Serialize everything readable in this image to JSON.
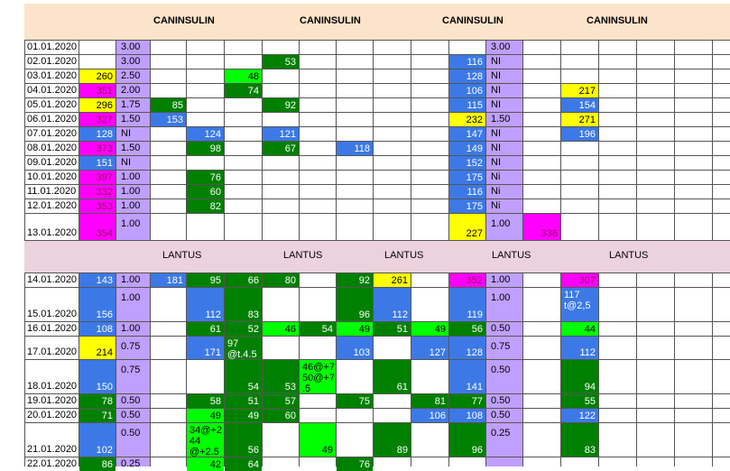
{
  "colors": {
    "header_band": "#fbe4c9",
    "lantus_band": "#ecd2dd",
    "yellow": "#ffff00",
    "magenta": "#ff00ff",
    "blue": "#3c79e6",
    "green": "#008000",
    "lime": "#00ff00",
    "lavender": "#bf9fff",
    "text": "#000000"
  },
  "header": {
    "caninsulin_labels": [
      "CANINSULIN",
      "CANINSULIN",
      "CANINSULIN",
      "CANINSULIN"
    ],
    "lantus_labels": [
      "LANTUS",
      "LANTUS",
      "LANTUS",
      "LANTUS",
      "LANTUS"
    ]
  },
  "rows": [
    {
      "date": "01.01.2020",
      "dose1": "3.00",
      "dose2": "3.00"
    },
    {
      "date": "02.01.2020",
      "dose1": "3.00",
      "dose2": "NI"
    },
    {
      "date": "03.01.2020",
      "dose1": "2.50",
      "dose2": "NI"
    },
    {
      "date": "04.01.2020",
      "dose1": "2.00",
      "dose2": "NI"
    },
    {
      "date": "05.01.2020",
      "dose1": "1.75",
      "dose2": "NI"
    },
    {
      "date": "06.01.2020",
      "dose1": "1.50",
      "dose2": "1.50"
    },
    {
      "date": "07.01.2020",
      "dose1": "NI",
      "dose2": "NI"
    },
    {
      "date": "08.01.2020",
      "dose1": "1.50",
      "dose2": "NI"
    },
    {
      "date": "09.01.2020",
      "dose1": "NI",
      "dose2": "NI"
    },
    {
      "date": "10.01.2020",
      "dose1": "1.00",
      "dose2": "Ni"
    },
    {
      "date": "11.01.2020",
      "dose1": "1.00",
      "dose2": "Ni"
    },
    {
      "date": "12.01.2020",
      "dose1": "1.00",
      "dose2": "Ni"
    },
    {
      "date": "13.01.2020",
      "dose1": "1.00",
      "dose2": "1.00"
    },
    {
      "date": "14.01.2020",
      "dose1": "1.00",
      "dose2": "1.00"
    },
    {
      "date": "15.01.2020",
      "dose1": "1.00",
      "dose2": "1.00"
    },
    {
      "date": "16.01.2020",
      "dose1": "1.00",
      "dose2": "0.50"
    },
    {
      "date": "17.01.2020",
      "dose1": "0.75",
      "dose2": "0.75"
    },
    {
      "date": "18.01.2020",
      "dose1": "0.75",
      "dose2": "0.50"
    },
    {
      "date": "19.01.2020",
      "dose1": "0.50",
      "dose2": "0.50"
    },
    {
      "date": "20.01.2020",
      "dose1": "0.50",
      "dose2": "0.50"
    },
    {
      "date": "21.01.2020",
      "dose1": "0.50",
      "dose2": "0.25"
    },
    {
      "date": "22.01.2020",
      "dose1": "0.25",
      "dose2": ""
    }
  ],
  "cells": [
    {
      "r": 2,
      "c": 1,
      "v": "260",
      "k": "yellow"
    },
    {
      "r": 3,
      "c": 1,
      "v": "351",
      "k": "magenta"
    },
    {
      "r": 4,
      "c": 1,
      "v": "296",
      "k": "yellow"
    },
    {
      "r": 5,
      "c": 1,
      "v": "327",
      "k": "magenta"
    },
    {
      "r": 6,
      "c": 1,
      "v": "128",
      "k": "blue"
    },
    {
      "r": 7,
      "c": 1,
      "v": "373",
      "k": "magenta"
    },
    {
      "r": 8,
      "c": 1,
      "v": "151",
      "k": "blue"
    },
    {
      "r": 9,
      "c": 1,
      "v": "397",
      "k": "magenta"
    },
    {
      "r": 10,
      "c": 1,
      "v": "332",
      "k": "magenta"
    },
    {
      "r": 11,
      "c": 1,
      "v": "353",
      "k": "magenta"
    },
    {
      "r": 12,
      "c": 1,
      "v": "354",
      "k": "magenta"
    },
    {
      "r": 2,
      "c": 5,
      "v": "48",
      "k": "lime"
    },
    {
      "r": 3,
      "c": 5,
      "v": "74",
      "k": "green"
    },
    {
      "r": 1,
      "c": 6,
      "v": "53",
      "k": "green"
    },
    {
      "r": 4,
      "c": 6,
      "v": "92",
      "k": "green"
    },
    {
      "r": 6,
      "c": 6,
      "v": "121",
      "k": "blue"
    },
    {
      "r": 7,
      "c": 6,
      "v": "67",
      "k": "green"
    },
    {
      "r": 4,
      "c": 3,
      "v": "85",
      "k": "green"
    },
    {
      "r": 5,
      "c": 3,
      "v": "153",
      "k": "blue"
    },
    {
      "r": 6,
      "c": 4,
      "v": "124",
      "k": "blue"
    },
    {
      "r": 7,
      "c": 4,
      "v": "98",
      "k": "green"
    },
    {
      "r": 9,
      "c": 4,
      "v": "76",
      "k": "green"
    },
    {
      "r": 10,
      "c": 4,
      "v": "60",
      "k": "green"
    },
    {
      "r": 11,
      "c": 4,
      "v": "82",
      "k": "green"
    },
    {
      "r": 7,
      "c": 8,
      "v": "118",
      "k": "blue"
    },
    {
      "r": 1,
      "c": 11,
      "v": "116",
      "k": "blue"
    },
    {
      "r": 2,
      "c": 11,
      "v": "128",
      "k": "blue"
    },
    {
      "r": 3,
      "c": 11,
      "v": "106",
      "k": "blue"
    },
    {
      "r": 4,
      "c": 11,
      "v": "115",
      "k": "blue"
    },
    {
      "r": 5,
      "c": 11,
      "v": "232",
      "k": "yellow"
    },
    {
      "r": 6,
      "c": 11,
      "v": "147",
      "k": "blue"
    },
    {
      "r": 7,
      "c": 11,
      "v": "149",
      "k": "blue"
    },
    {
      "r": 8,
      "c": 11,
      "v": "152",
      "k": "blue"
    },
    {
      "r": 9,
      "c": 11,
      "v": "175",
      "k": "blue"
    },
    {
      "r": 10,
      "c": 11,
      "v": "116",
      "k": "blue"
    },
    {
      "r": 11,
      "c": 11,
      "v": "175",
      "k": "blue"
    },
    {
      "r": 12,
      "c": 11,
      "v": "227",
      "k": "yellow"
    },
    {
      "r": 12,
      "c": 13,
      "v": "336",
      "k": "magenta"
    },
    {
      "r": 3,
      "c": 14,
      "v": "217",
      "k": "yellow"
    },
    {
      "r": 4,
      "c": 14,
      "v": "154",
      "k": "blue"
    },
    {
      "r": 5,
      "c": 14,
      "v": "271",
      "k": "yellow"
    },
    {
      "r": 6,
      "c": 14,
      "v": "196",
      "k": "blue"
    },
    {
      "r": 13,
      "c": 1,
      "v": "143",
      "k": "blue"
    },
    {
      "r": 14,
      "c": 1,
      "v": "156",
      "k": "blue"
    },
    {
      "r": 15,
      "c": 1,
      "v": "108",
      "k": "blue"
    },
    {
      "r": 16,
      "c": 1,
      "v": "214",
      "k": "yellow"
    },
    {
      "r": 17,
      "c": 1,
      "v": "150",
      "k": "blue"
    },
    {
      "r": 18,
      "c": 1,
      "v": "78",
      "k": "green"
    },
    {
      "r": 19,
      "c": 1,
      "v": "71",
      "k": "green"
    },
    {
      "r": 20,
      "c": 1,
      "v": "102",
      "k": "blue"
    },
    {
      "r": 21,
      "c": 1,
      "v": "86",
      "k": "green"
    },
    {
      "r": 13,
      "c": 3,
      "v": "181",
      "k": "blue"
    },
    {
      "r": 13,
      "c": 4,
      "v": "95",
      "k": "green"
    },
    {
      "r": 13,
      "c": 5,
      "v": "66",
      "k": "green"
    },
    {
      "r": 13,
      "c": 6,
      "v": "80",
      "k": "green"
    },
    {
      "r": 13,
      "c": 8,
      "v": "92",
      "k": "green"
    },
    {
      "r": 13,
      "c": 9,
      "v": "261",
      "k": "yellow"
    },
    {
      "r": 13,
      "c": 11,
      "v": "352",
      "k": "magenta"
    },
    {
      "r": 13,
      "c": 14,
      "v": "307",
      "k": "magenta"
    },
    {
      "r": 14,
      "c": 4,
      "v": "112",
      "k": "blue"
    },
    {
      "r": 14,
      "c": 5,
      "v": "83",
      "k": "green"
    },
    {
      "r": 14,
      "c": 8,
      "v": "96",
      "k": "green"
    },
    {
      "r": 14,
      "c": 9,
      "v": "112",
      "k": "blue"
    },
    {
      "r": 14,
      "c": 11,
      "v": "119",
      "k": "blue"
    },
    {
      "r": 14,
      "c": 14,
      "v": "117\nt@2,5",
      "k": "blue"
    },
    {
      "r": 15,
      "c": 4,
      "v": "61",
      "k": "green"
    },
    {
      "r": 15,
      "c": 5,
      "v": "52",
      "k": "green"
    },
    {
      "r": 15,
      "c": 6,
      "v": "46",
      "k": "lime"
    },
    {
      "r": 15,
      "c": 7,
      "v": "54",
      "k": "green"
    },
    {
      "r": 15,
      "c": 8,
      "v": "49",
      "k": "lime"
    },
    {
      "r": 15,
      "c": 9,
      "v": "51",
      "k": "green"
    },
    {
      "r": 15,
      "c": 10,
      "v": "49",
      "k": "lime"
    },
    {
      "r": 15,
      "c": 11,
      "v": "56",
      "k": "green"
    },
    {
      "r": 15,
      "c": 14,
      "v": "44",
      "k": "lime"
    },
    {
      "r": 16,
      "c": 4,
      "v": "171",
      "k": "blue"
    },
    {
      "r": 16,
      "c": 5,
      "v": "97\n@t.4.5",
      "k": "green"
    },
    {
      "r": 16,
      "c": 8,
      "v": "103",
      "k": "blue"
    },
    {
      "r": 16,
      "c": 10,
      "v": "127",
      "k": "blue"
    },
    {
      "r": 16,
      "c": 11,
      "v": "128",
      "k": "blue"
    },
    {
      "r": 16,
      "c": 14,
      "v": "112",
      "k": "blue"
    },
    {
      "r": 17,
      "c": 5,
      "v": "54",
      "k": "green"
    },
    {
      "r": 17,
      "c": 6,
      "v": "53",
      "k": "green"
    },
    {
      "r": 17,
      "c": 7,
      "v": "46@+7\n50@+7\n.5",
      "k": "lime"
    },
    {
      "r": 17,
      "c": 9,
      "v": "61",
      "k": "green"
    },
    {
      "r": 17,
      "c": 11,
      "v": "141",
      "k": "blue"
    },
    {
      "r": 17,
      "c": 14,
      "v": "94",
      "k": "green"
    },
    {
      "r": 18,
      "c": 4,
      "v": "58",
      "k": "green"
    },
    {
      "r": 18,
      "c": 5,
      "v": "51",
      "k": "green"
    },
    {
      "r": 18,
      "c": 5,
      "v": "57",
      "k": "green",
      "o": 1
    },
    {
      "r": 18,
      "c": 8,
      "v": "75",
      "k": "green"
    },
    {
      "r": 18,
      "c": 10,
      "v": "81",
      "k": "green"
    },
    {
      "r": 18,
      "c": 11,
      "v": "77",
      "k": "green"
    },
    {
      "r": 18,
      "c": 14,
      "v": "55",
      "k": "green"
    },
    {
      "r": 19,
      "c": 4,
      "v": "49",
      "k": "lime"
    },
    {
      "r": 19,
      "c": 5,
      "v": "49",
      "k": "green"
    },
    {
      "r": 19,
      "c": 5,
      "v": "60",
      "k": "green",
      "o": 1
    },
    {
      "r": 19,
      "c": 10,
      "v": "106",
      "k": "blue"
    },
    {
      "r": 19,
      "c": 11,
      "v": "108",
      "k": "blue"
    },
    {
      "r": 19,
      "c": 14,
      "v": "122",
      "k": "blue"
    },
    {
      "r": 20,
      "c": 4,
      "v": "34@+2\n44\n@+2.5",
      "k": "lime"
    },
    {
      "r": 20,
      "c": 5,
      "v": "56",
      "k": "green"
    },
    {
      "r": 20,
      "c": 7,
      "v": "49",
      "k": "lime"
    },
    {
      "r": 20,
      "c": 9,
      "v": "89",
      "k": "green"
    },
    {
      "r": 20,
      "c": 11,
      "v": "96",
      "k": "green"
    },
    {
      "r": 20,
      "c": 14,
      "v": "83",
      "k": "green"
    },
    {
      "r": 21,
      "c": 4,
      "v": "42",
      "k": "lime"
    },
    {
      "r": 21,
      "c": 5,
      "v": "64",
      "k": "green"
    },
    {
      "r": 21,
      "c": 8,
      "v": "76",
      "k": "green"
    }
  ]
}
